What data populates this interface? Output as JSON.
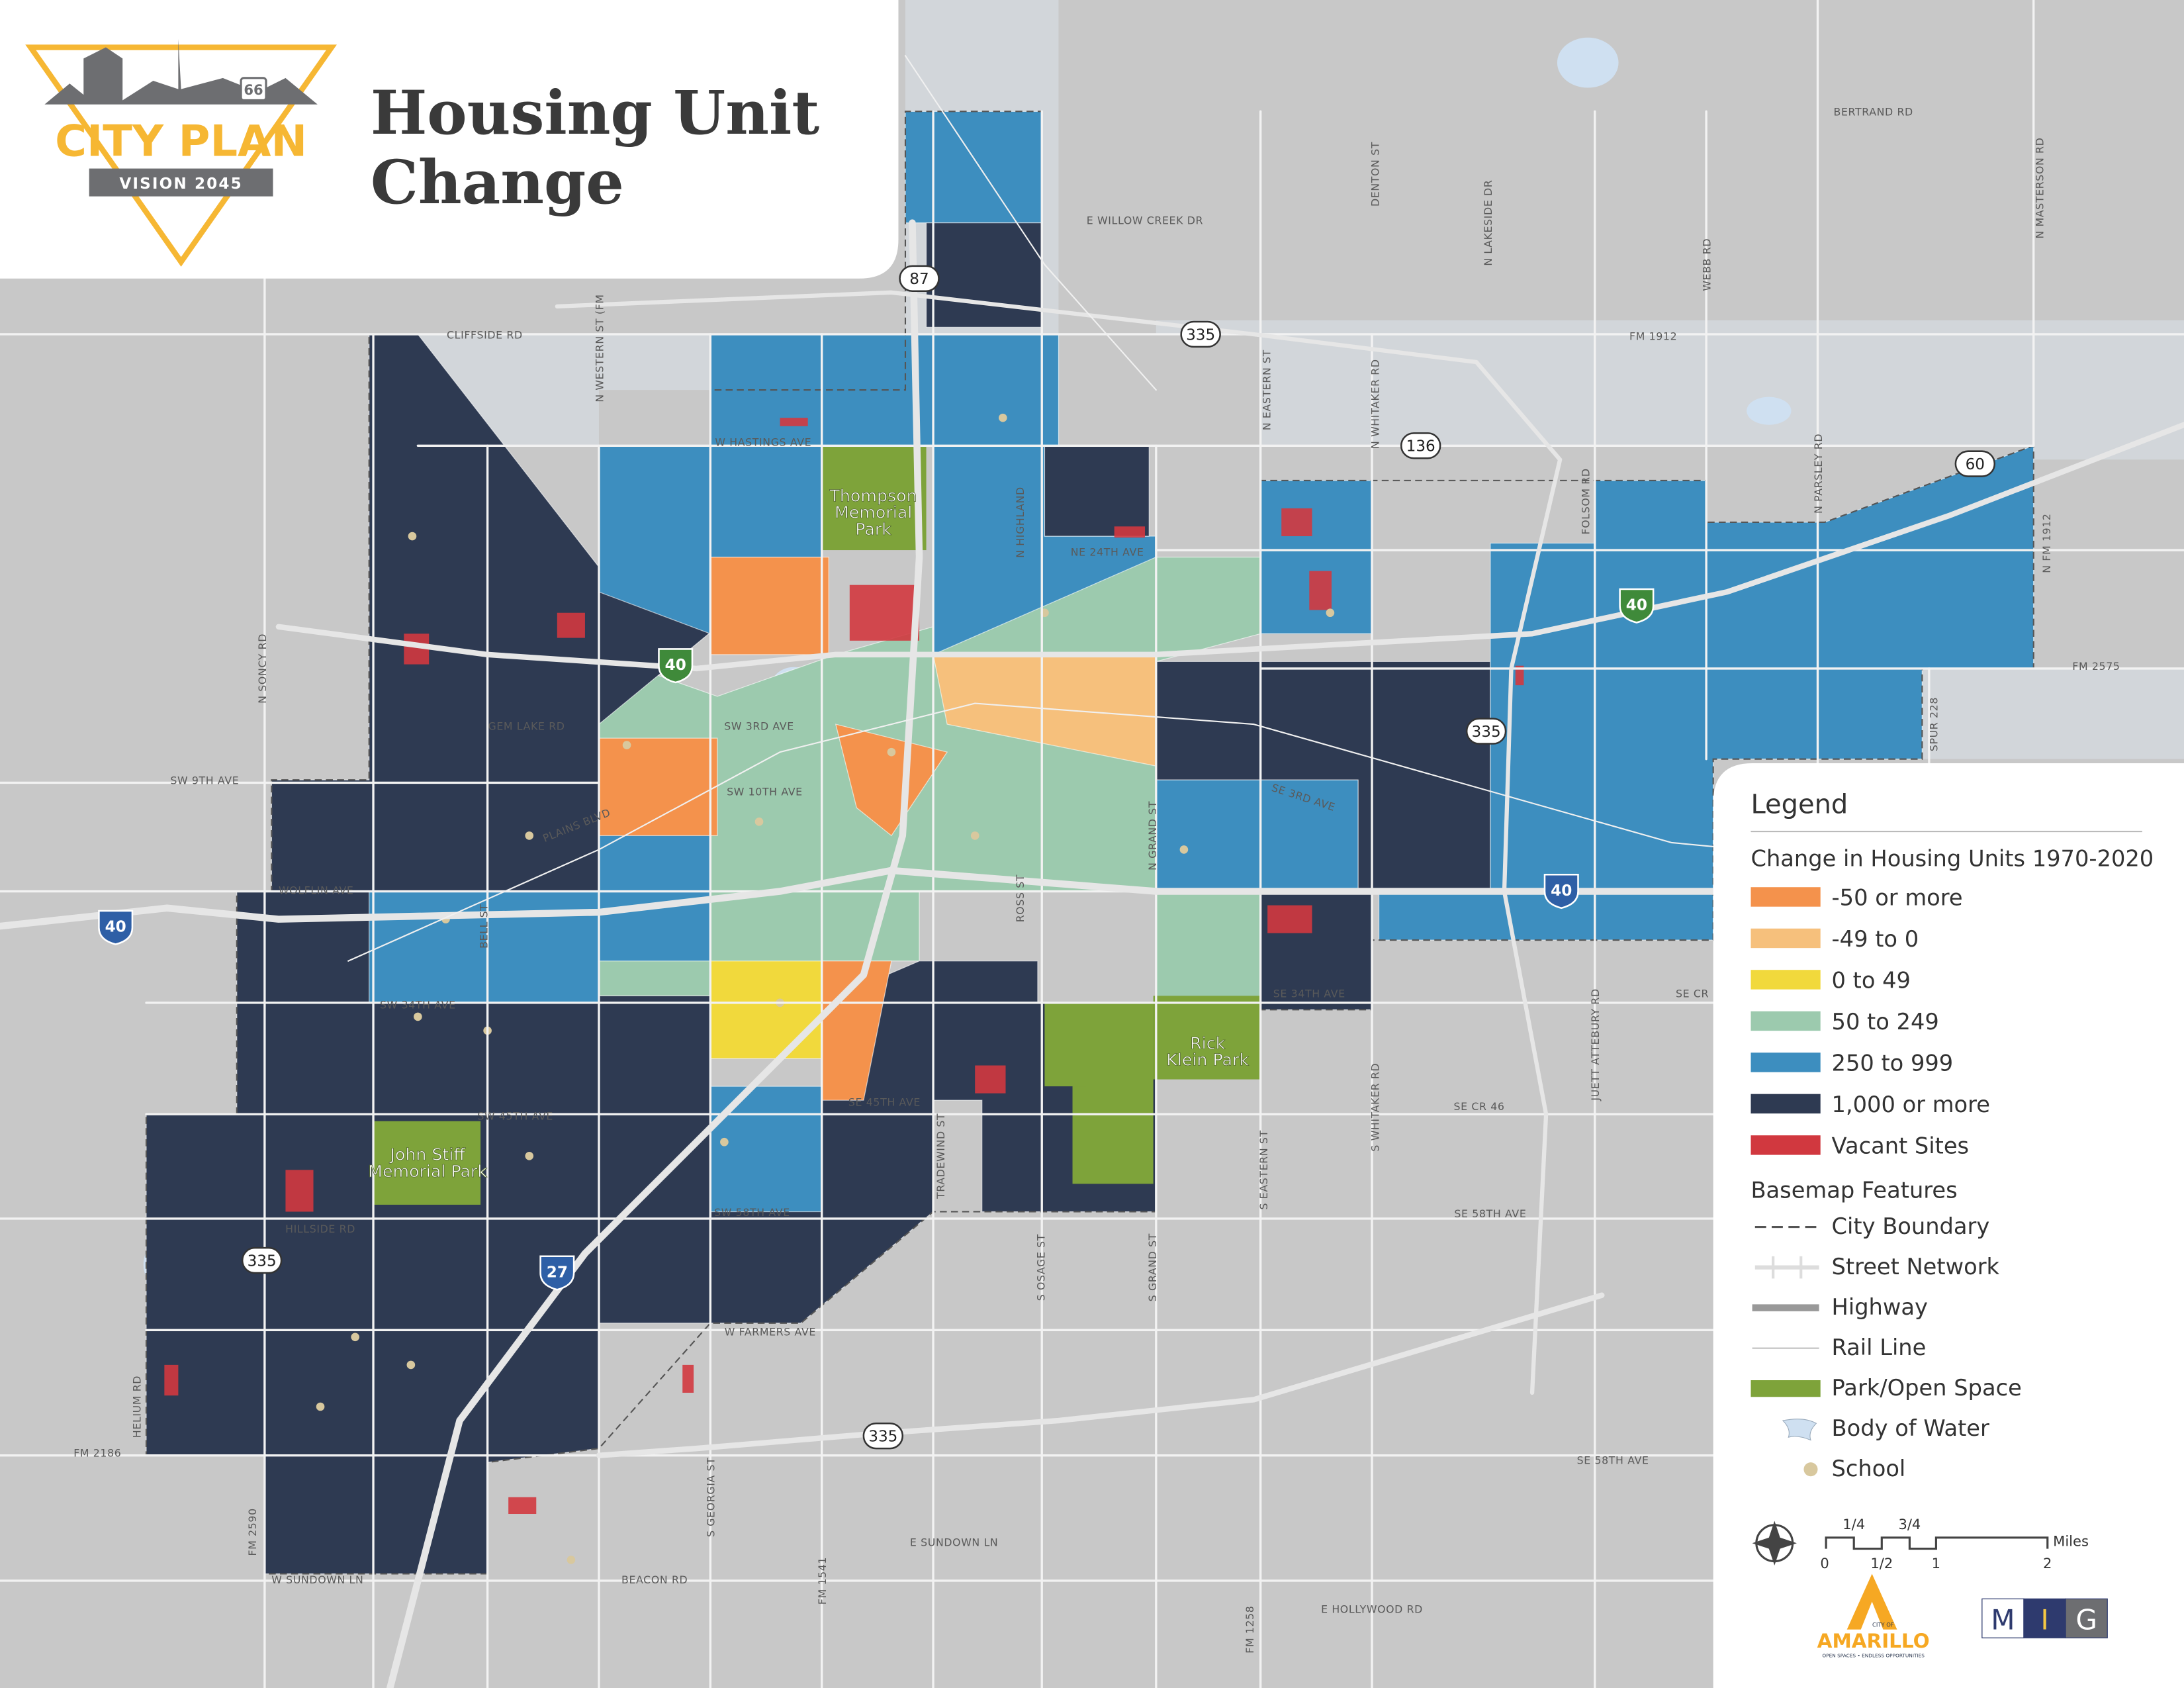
{
  "header": {
    "title_lines": [
      "Housing Unit",
      "Change"
    ],
    "logo": {
      "route": "66",
      "name": "CITY PLAN",
      "vision": "VISION 2045"
    }
  },
  "map": {
    "street_labels": [
      "CLIFFSIDE RD",
      "W HASTINGS AVE",
      "E WILLOW CREEK DR",
      "BERTRAND RD",
      "FM 1912",
      "SW 9TH AVE",
      "SW 10TH AVE",
      "SW 3RD AVE",
      "GEM LAKE RD",
      "WOLFLIN AVE",
      "SW 34TH AVE",
      "SW 45TH AVE",
      "SE 34TH AVE",
      "SE CR 46",
      "SE 58TH AVE",
      "SE 58TH AVE",
      "W FARMERS AVE",
      "FM 2186",
      "W SUNDOWN LN",
      "BEACON RD",
      "E SUNDOWN LN",
      "E HOLLYWOOD RD",
      "FM 2575",
      "NE 24TH AVE",
      "PLAINS BLVD",
      "SE 3RD AVE",
      "SW 58TH AVE",
      "SE 45TH AVE",
      "SE CR",
      "N SONCY RD",
      "N WESTERN ST (FM",
      "DENTON ST",
      "N LAKESIDE DR",
      "N WHITAKER RD",
      "N EASTERN ST",
      "WEBB RD",
      "N MASTERSON RD",
      "FOLSOM RD",
      "N PARSLEY RD",
      "N FM 1912",
      "SPUR 228",
      "S WHITAKER RD",
      "JUETT ATTEBURY RD",
      "S EASTERN ST",
      "S GRAND ST",
      "S OSAGE ST",
      "TRADEWIND ST",
      "S GEORGIA ST",
      "FM 1541",
      "FM 1258",
      "FM 2590",
      "HELIUM RD",
      "BELL ST",
      "N GRAND ST",
      "ROSS ST",
      "HILLSIDE RD",
      "N HIGHLAND"
    ],
    "park_labels": [
      {
        "lines": [
          "Thompson",
          "Memorial",
          "Park"
        ]
      },
      {
        "lines": [
          "Rick",
          "Klein Park"
        ]
      },
      {
        "lines": [
          "John Stiff",
          "Memorial Park"
        ]
      }
    ],
    "us_shields": [
      "87",
      "335",
      "136",
      "60",
      "335",
      "335",
      "335"
    ],
    "interstate_shields": [
      "40",
      "40",
      "40",
      "40",
      "27"
    ]
  },
  "legend": {
    "title": "Legend",
    "housing_heading": "Change in Housing Units 1970-2020",
    "housing_classes": [
      {
        "label": "-50 or more",
        "color": "#f4924c"
      },
      {
        "label": "-49 to 0",
        "color": "#f6c07c"
      },
      {
        "label": "0 to 49",
        "color": "#f1d93c"
      },
      {
        "label": "50 to 249",
        "color": "#9ccaae"
      },
      {
        "label": "250 to 999",
        "color": "#3d8ebf"
      },
      {
        "label": "1,000 or more",
        "color": "#2e3a52"
      },
      {
        "label": "Vacant Sites",
        "color": "#d1383f"
      }
    ],
    "basemap_heading": "Basemap Features",
    "basemap_features": [
      {
        "label": "City Boundary"
      },
      {
        "label": "Street Network"
      },
      {
        "label": "Highway"
      },
      {
        "label": "Rail Line"
      },
      {
        "label": "Park/Open Space",
        "color": "#7ea33a"
      },
      {
        "label": "Body of Water",
        "color": "#cfe0f1"
      },
      {
        "label": "School",
        "color": "#d8c89e"
      }
    ],
    "scale": {
      "top_labels": [
        "1/4",
        "3/4"
      ],
      "bottom_labels": [
        "0",
        "1/2",
        "1",
        "2"
      ],
      "unit": "Miles"
    }
  },
  "credits": {
    "amarillo": {
      "small": "CITY OF",
      "name": "AMARILLO",
      "tagline": "OPEN SPACES • ENDLESS OPPORTUNITIES"
    },
    "mig": [
      "M",
      "I",
      "G"
    ]
  }
}
